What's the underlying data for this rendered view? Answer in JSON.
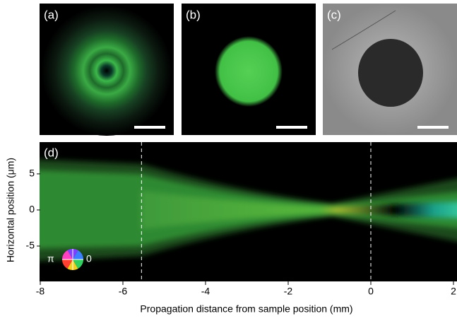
{
  "panels": [
    {
      "label": "(a)"
    },
    {
      "label": "(b)"
    },
    {
      "label": "(c)"
    }
  ],
  "chart_data": {
    "type": "image",
    "label": "(d)",
    "xlabel": "Propagation distance from sample position (mm)",
    "ylabel": "Horizontal position (μm)",
    "xlim": [
      -8,
      2
    ],
    "ylim": [
      -9.9,
      9.4
    ],
    "xticks": [
      -8,
      -6,
      -4,
      -2,
      0,
      2
    ],
    "yticks": [
      -5,
      0,
      5
    ],
    "vlines": [
      -5.55,
      0
    ],
    "phase_labels": [
      "π",
      "0"
    ]
  }
}
